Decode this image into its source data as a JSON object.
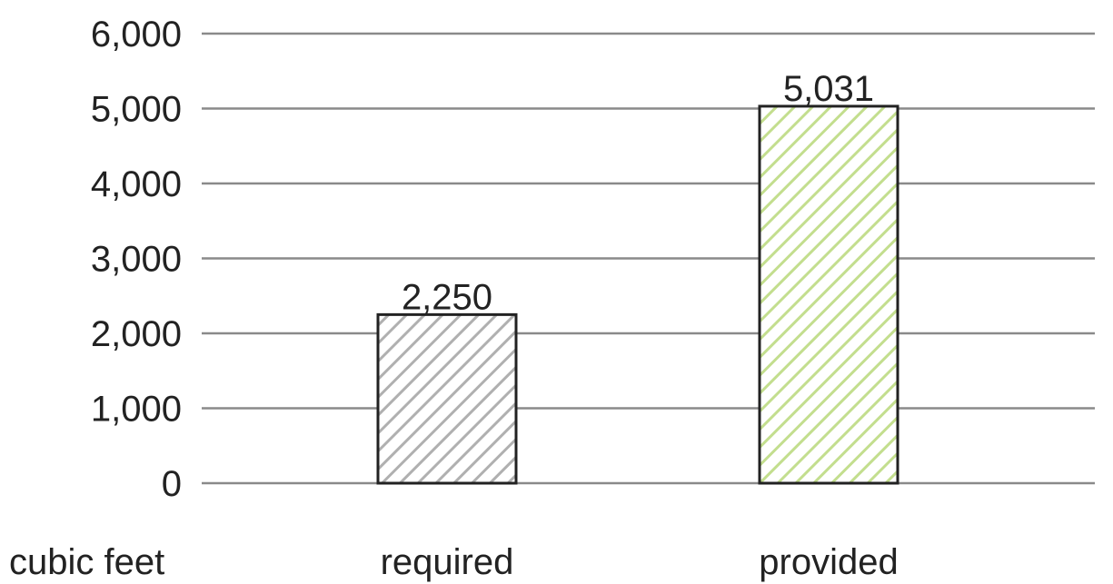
{
  "chart_data": {
    "type": "bar",
    "categories": [
      "required",
      "provided"
    ],
    "values": [
      2250,
      5031
    ],
    "value_labels": [
      "2,250",
      "5,031"
    ],
    "title": "",
    "xlabel": "",
    "ylabel": "",
    "unit_label": "cubic feet",
    "ylim": [
      0,
      6000
    ],
    "yticks": [
      0,
      1000,
      2000,
      3000,
      4000,
      5000,
      6000
    ],
    "ytick_labels": [
      "0",
      "1,000",
      "2,000",
      "3,000",
      "4,000",
      "5,000",
      "6,000"
    ],
    "grid": true,
    "legend": "none",
    "bar_colors": [
      "#b0b0b0",
      "#c3de8e"
    ],
    "bar_fill": "hatched"
  }
}
